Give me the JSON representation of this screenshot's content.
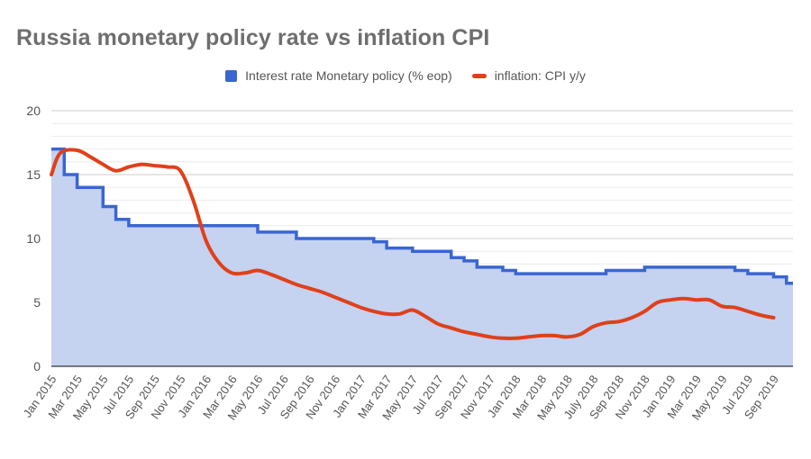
{
  "chart_data": {
    "type": "line",
    "title": "Russia monetary policy rate vs inflation CPI",
    "xlabel": "",
    "ylabel": "",
    "ylim": [
      0,
      20
    ],
    "yticks": [
      0,
      5,
      10,
      15,
      20
    ],
    "legend_position": "top-center",
    "grid": true,
    "tick_labels": [
      "Jan 2015",
      "Mar 2015",
      "May 2015",
      "Jul 2015",
      "Sep 2015",
      "Nov 2015",
      "Jan 2016",
      "Mar 2016",
      "May 2016",
      "Jul 2016",
      "Sep 2016",
      "Nov 2016",
      "Jan 2017",
      "Mar 2017",
      "May 2017",
      "Jul 2017",
      "Sep 2017",
      "Nov 2017",
      "Jan 2018",
      "Mar 2018",
      "May 2018",
      "July 2018",
      "Sep 2018",
      "Nov 2018",
      "Jan 2019",
      "Mar 2019",
      "May 2019",
      "Jul 2019",
      "Sep 2019"
    ],
    "tick_positions": [
      0,
      2,
      4,
      6,
      8,
      10,
      12,
      14,
      16,
      18,
      20,
      22,
      24,
      26,
      28,
      30,
      32,
      34,
      36,
      38,
      40,
      42,
      44,
      46,
      48,
      50,
      52,
      54,
      56
    ],
    "x_range": [
      0,
      57.5
    ],
    "series": [
      {
        "name": "Interest rate Monetary policy (% eop)",
        "style": "step-area",
        "color": "#3a66d3",
        "fill": "#c2d0ef",
        "x": [
          0,
          1,
          2,
          4,
          5,
          6,
          7,
          8,
          9,
          10,
          11,
          12,
          13,
          14,
          15,
          16,
          17,
          18,
          19,
          20,
          21,
          22,
          23,
          24,
          25,
          26,
          27,
          28,
          29,
          30,
          31,
          32,
          33,
          34,
          35,
          36,
          37,
          38,
          39,
          40,
          41,
          42,
          43,
          44,
          45,
          46,
          47,
          48,
          49,
          50,
          51,
          52,
          53,
          54,
          55,
          56,
          57
        ],
        "values": [
          17,
          15,
          14,
          12.5,
          11.5,
          11,
          11,
          11,
          11,
          11,
          11,
          11,
          11,
          11,
          11,
          10.5,
          10.5,
          10.5,
          10,
          10,
          10,
          10,
          10,
          10,
          9.75,
          9.25,
          9.25,
          9,
          9,
          9,
          8.5,
          8.25,
          7.75,
          7.75,
          7.5,
          7.25,
          7.25,
          7.25,
          7.25,
          7.25,
          7.25,
          7.25,
          7.5,
          7.5,
          7.5,
          7.75,
          7.75,
          7.75,
          7.75,
          7.75,
          7.75,
          7.75,
          7.5,
          7.25,
          7.25,
          7,
          6.5
        ]
      },
      {
        "name": "inflation: CPI y/y",
        "style": "line",
        "color": "#e0401a",
        "x": [
          0,
          0.7,
          2,
          3,
          4,
          5,
          6,
          7,
          8,
          9,
          10,
          11,
          12,
          13,
          14,
          15,
          16,
          17,
          18,
          19,
          20,
          21,
          22,
          23,
          24,
          25,
          26,
          27,
          28,
          29,
          30,
          31,
          32,
          33,
          34,
          35,
          36,
          37,
          38,
          39,
          40,
          41,
          42,
          43,
          44,
          45,
          46,
          47,
          48,
          49,
          50,
          51,
          52,
          53,
          54,
          55,
          56
        ],
        "values": [
          15,
          16.7,
          16.9,
          16.4,
          15.8,
          15.3,
          15.6,
          15.8,
          15.7,
          15.6,
          15.3,
          13,
          9.8,
          8.1,
          7.3,
          7.3,
          7.5,
          7.2,
          6.8,
          6.4,
          6.1,
          5.8,
          5.4,
          5,
          4.6,
          4.3,
          4.1,
          4.1,
          4.4,
          3.9,
          3.3,
          3,
          2.7,
          2.5,
          2.3,
          2.2,
          2.2,
          2.3,
          2.4,
          2.4,
          2.3,
          2.5,
          3.1,
          3.4,
          3.5,
          3.8,
          4.3,
          5,
          5.2,
          5.3,
          5.2,
          5.2,
          4.7,
          4.6,
          4.3,
          4,
          3.8
        ]
      }
    ]
  }
}
